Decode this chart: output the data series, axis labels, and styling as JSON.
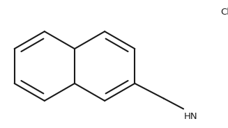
{
  "bg_color": "#ffffff",
  "line_color": "#1a1a1a",
  "line_width": 1.5,
  "font_size_Cl": 9.5,
  "font_size_HN": 9.5,
  "Cl_label": "Cl",
  "NH_label": "HN"
}
